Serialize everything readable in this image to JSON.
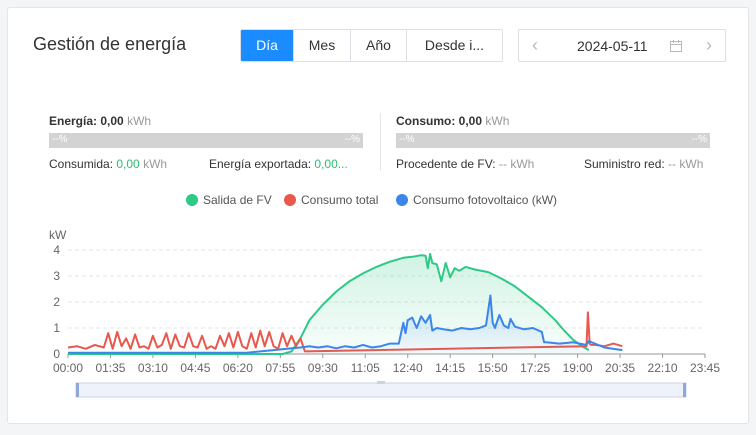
{
  "header": {
    "title": "Gestión de energía"
  },
  "tabs": [
    {
      "label": "Día",
      "active": true
    },
    {
      "label": "Mes",
      "active": false
    },
    {
      "label": "Año",
      "active": false
    },
    {
      "label": "Desde i...",
      "active": false
    }
  ],
  "date": {
    "value": "2024-05-11",
    "prev_icon": "chevron-left-icon",
    "next_icon": "chevron-right-icon",
    "calendar_icon": "calendar-icon"
  },
  "energy": {
    "label": "Energía:",
    "value": "0,00",
    "unit": "kWh",
    "bar_left": "--%",
    "bar_right": "--%",
    "consumed_label": "Consumida:",
    "consumed_value": "0,00",
    "consumed_unit": "kWh",
    "exported_label": "Energía exportada:",
    "exported_value": "0,00..."
  },
  "consumption": {
    "label": "Consumo:",
    "value": "0,00",
    "unit": "kWh",
    "bar_left": "--%",
    "bar_right": "--%",
    "pv_label": "Procedente de FV:",
    "pv_value": "--",
    "pv_unit": "kWh",
    "grid_label": "Suministro red:",
    "grid_value": "--",
    "grid_unit": "kWh"
  },
  "colors": {
    "pv_output": "#2dc986",
    "total_consumption": "#e8584d",
    "pv_consumption": "#3b86e8",
    "accent": "#1a8cff"
  },
  "chart_data": {
    "type": "line",
    "ylabel": "kW",
    "ylim": [
      0,
      4
    ],
    "yticks": [
      "0",
      "1",
      "2",
      "3",
      "4"
    ],
    "xlim": [
      0,
      1425
    ],
    "xticks": [
      "00:00",
      "01:35",
      "03:10",
      "04:45",
      "06:20",
      "07:55",
      "09:30",
      "11:05",
      "12:40",
      "14:15",
      "15:50",
      "17:25",
      "19:00",
      "20:35",
      "22:10",
      "23:45"
    ],
    "grid": true,
    "legend_position": "top-center",
    "series": [
      {
        "name": "Salida de FV",
        "color": "#2dc986",
        "area": true,
        "x": [
          0,
          480,
          500,
          520,
          540,
          570,
          600,
          630,
          660,
          690,
          720,
          750,
          775,
          790,
          800,
          805,
          810,
          815,
          825,
          835,
          845,
          855,
          865,
          875,
          890,
          910,
          940,
          970,
          1000,
          1030,
          1060,
          1090,
          1110,
          1130,
          1150,
          1165
        ],
        "y": [
          0,
          0,
          0.1,
          0.6,
          1.3,
          1.9,
          2.4,
          2.8,
          3.1,
          3.35,
          3.55,
          3.7,
          3.75,
          3.8,
          3.78,
          3.3,
          3.85,
          3.5,
          3.45,
          2.8,
          3.5,
          2.95,
          3.3,
          3.2,
          3.35,
          3.25,
          3.15,
          2.9,
          2.6,
          2.2,
          1.8,
          1.3,
          0.9,
          0.55,
          0.3,
          0.15
        ]
      },
      {
        "name": "Consumo total",
        "color": "#e8584d",
        "area": false,
        "x": [
          0,
          20,
          40,
          60,
          80,
          90,
          100,
          110,
          120,
          130,
          140,
          150,
          160,
          170,
          180,
          190,
          200,
          210,
          220,
          230,
          240,
          250,
          260,
          270,
          280,
          290,
          300,
          310,
          320,
          330,
          340,
          350,
          360,
          370,
          380,
          390,
          400,
          410,
          420,
          430,
          440,
          450,
          460,
          470,
          480,
          490,
          500,
          510,
          520,
          530,
          1160,
          1163,
          1167,
          1170,
          1180,
          1200,
          1220,
          1240
        ],
        "y": [
          0.25,
          0.3,
          0.2,
          0.35,
          0.25,
          0.8,
          0.2,
          0.85,
          0.3,
          0.6,
          0.2,
          0.75,
          0.25,
          0.3,
          0.2,
          0.7,
          0.25,
          0.35,
          0.8,
          0.2,
          0.75,
          0.3,
          0.25,
          0.8,
          0.3,
          0.25,
          0.7,
          0.2,
          0.3,
          0.2,
          0.7,
          0.3,
          0.8,
          0.25,
          0.85,
          0.3,
          0.2,
          0.8,
          0.25,
          0.9,
          0.3,
          0.85,
          0.3,
          0.2,
          0.8,
          0.3,
          0.7,
          0.3,
          0.6,
          0.1,
          0.3,
          1.6,
          0.4,
          0.35,
          0.35,
          0.3,
          0.4,
          0.3
        ]
      },
      {
        "name": "Consumo fotovoltaico (kW)",
        "color": "#3b86e8",
        "area": true,
        "x": [
          0,
          400,
          430,
          460,
          490,
          520,
          540,
          560,
          580,
          600,
          620,
          640,
          660,
          680,
          700,
          720,
          740,
          750,
          755,
          760,
          770,
          780,
          790,
          800,
          810,
          815,
          825,
          840,
          860,
          880,
          900,
          920,
          935,
          945,
          950,
          955,
          965,
          975,
          985,
          990,
          1000,
          1020,
          1040,
          1060,
          1065,
          1070,
          1100,
          1130,
          1160,
          1165,
          1200,
          1240
        ],
        "y": [
          0.05,
          0.05,
          0.1,
          0.15,
          0.2,
          0.25,
          0.3,
          0.25,
          0.3,
          0.22,
          0.3,
          0.25,
          0.35,
          0.25,
          0.3,
          0.4,
          0.4,
          1.2,
          0.8,
          1.3,
          1.4,
          1.0,
          1.45,
          1.2,
          1.5,
          0.9,
          1.0,
          0.95,
          0.9,
          1.0,
          0.95,
          1.0,
          1.1,
          2.25,
          1.2,
          1.0,
          1.5,
          1.1,
          1.0,
          1.35,
          1.05,
          0.95,
          1.0,
          0.85,
          0.45,
          0.45,
          0.4,
          0.45,
          0.35,
          0.5,
          0.25,
          0.15
        ]
      }
    ]
  }
}
